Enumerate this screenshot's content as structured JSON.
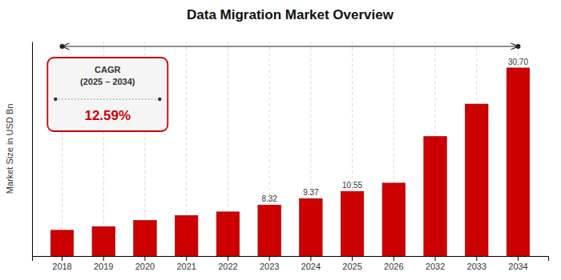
{
  "chart_data": {
    "type": "bar",
    "title": "Data Migration Market Overview",
    "ylabel": "Market Size in USD Bn",
    "categories": [
      "2018",
      "2019",
      "2020",
      "2021",
      "2022",
      "2023",
      "2024",
      "2025",
      "2026",
      "2032",
      "2033",
      "2034"
    ],
    "values": [
      4.2,
      4.8,
      5.8,
      6.6,
      7.2,
      8.32,
      9.37,
      10.55,
      11.9,
      19.5,
      24.8,
      30.7
    ],
    "value_labels": [
      null,
      null,
      null,
      null,
      null,
      "8.32",
      "9.37",
      "10.55",
      null,
      null,
      null,
      "30.70"
    ],
    "data_labels": true,
    "color": "#cc0000",
    "ylim": [
      0,
      35
    ],
    "tick_labels": "x",
    "grid": true,
    "annotations": [
      "CAGR\n(2025 – 2034)",
      "12.59%"
    ]
  }
}
